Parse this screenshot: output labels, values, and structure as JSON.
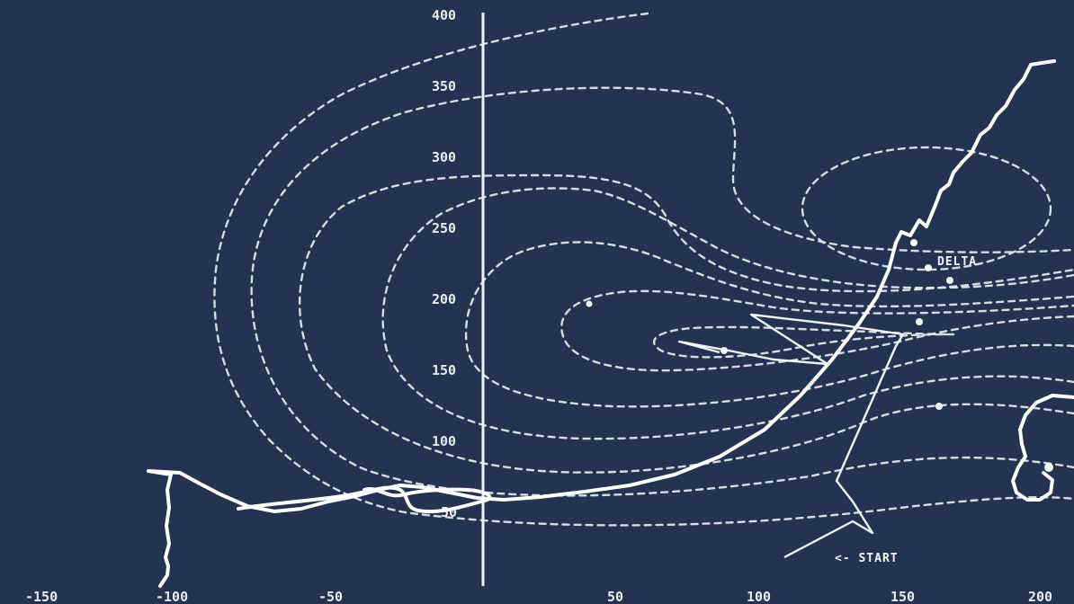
{
  "colors": {
    "background": "#253352",
    "ink": "#eef1f6"
  },
  "x_tick_labels": [
    "-150",
    "-100",
    "-50",
    "50",
    "100",
    "150",
    "200"
  ],
  "y_tick_labels": [
    "50",
    "100",
    "150",
    "200",
    "250",
    "300",
    "350",
    "400"
  ],
  "annotations": {
    "start": "<- START",
    "delta": "DELTA"
  }
}
